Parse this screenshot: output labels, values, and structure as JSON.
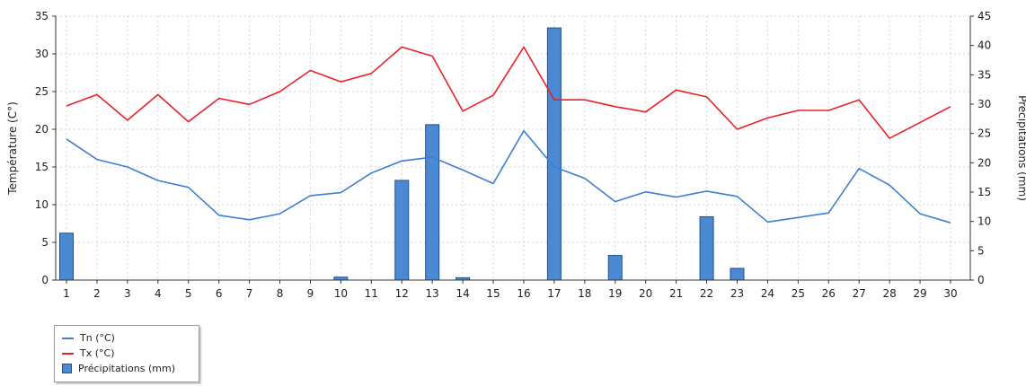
{
  "chart_data": {
    "type": "bar-line",
    "title": "",
    "categories": [
      "1",
      "2",
      "3",
      "4",
      "5",
      "6",
      "7",
      "8",
      "9",
      "10",
      "11",
      "12",
      "13",
      "14",
      "15",
      "16",
      "17",
      "18",
      "19",
      "20",
      "21",
      "22",
      "23",
      "24",
      "25",
      "26",
      "27",
      "28",
      "29",
      "30"
    ],
    "y_left": {
      "label": "Température (C°)",
      "lim": [
        0,
        35
      ],
      "ticks": [
        "0",
        "5",
        "10",
        "15",
        "20",
        "25",
        "30",
        "35"
      ]
    },
    "y_right": {
      "label": "Précipitations (mm)",
      "lim": [
        0,
        45
      ],
      "ticks": [
        "0",
        "5",
        "10",
        "15",
        "20",
        "25",
        "30",
        "35",
        "40",
        "45"
      ]
    },
    "series": [
      {
        "name": "Tn (°C)",
        "kind": "line",
        "axis": "left",
        "color": "#3d7fd1",
        "values": [
          18.7,
          16.0,
          15.0,
          13.2,
          12.3,
          8.6,
          8.0,
          8.8,
          11.2,
          11.6,
          14.2,
          15.8,
          16.3,
          14.6,
          12.8,
          19.8,
          15.0,
          13.5,
          10.4,
          11.7,
          11.0,
          11.8,
          11.1,
          7.7,
          8.3,
          8.9,
          14.8,
          12.6,
          8.8,
          7.6
        ]
      },
      {
        "name": "Tx (°C)",
        "kind": "line",
        "axis": "left",
        "color": "#e8212a",
        "values": [
          23.1,
          24.6,
          21.2,
          24.6,
          21.0,
          24.1,
          23.3,
          25.0,
          27.8,
          26.3,
          27.4,
          30.9,
          29.7,
          22.4,
          24.5,
          30.9,
          23.9,
          23.9,
          23.0,
          22.3,
          25.2,
          24.3,
          20.0,
          21.5,
          22.5,
          22.5,
          23.9,
          18.8,
          20.9,
          23.0
        ]
      },
      {
        "name": "Précipitations (mm)",
        "kind": "bar",
        "axis": "right",
        "color": "#4b89d3",
        "values": [
          8.0,
          0,
          0,
          0,
          0,
          0,
          0,
          0,
          0,
          0.5,
          0,
          17.0,
          26.5,
          0.4,
          0,
          0,
          43.0,
          0,
          4.2,
          0,
          0,
          10.8,
          2.0,
          0,
          0,
          0,
          0,
          0,
          0,
          0
        ]
      }
    ],
    "grid": true,
    "legend_position": "bottom-left"
  }
}
